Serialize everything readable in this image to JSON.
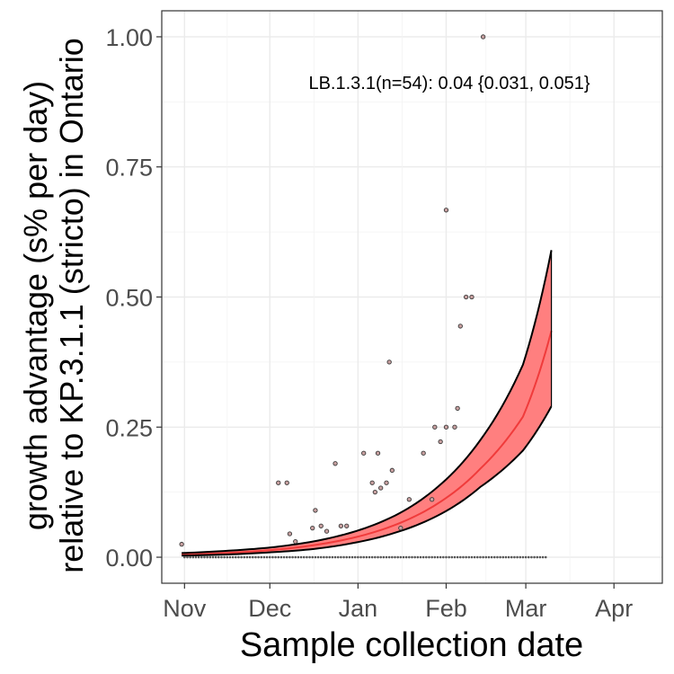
{
  "chart_data": {
    "type": "line",
    "title": "",
    "xlabel": "Sample collection date",
    "ylabel_line1": "growth advantage (s% per day)",
    "ylabel_line2": "relative to KP.3.1.1 (stricto) in Ontario",
    "annotation": "LB.1.3.1(n=54): 0.04 {0.031, 0.051}",
    "x_ticks": [
      {
        "label": "Nov",
        "date": "2024-11-01"
      },
      {
        "label": "Dec",
        "date": "2024-12-01"
      },
      {
        "label": "Jan",
        "date": "2025-01-01"
      },
      {
        "label": "Feb",
        "date": "2025-02-01"
      },
      {
        "label": "Mar",
        "date": "2025-03-01"
      },
      {
        "label": "Apr",
        "date": "2025-04-01"
      }
    ],
    "y_ticks": [
      "0.00",
      "0.25",
      "0.50",
      "0.75",
      "1.00"
    ],
    "xlim": [
      "2024-10-24",
      "2025-04-18"
    ],
    "ylim": [
      -0.05,
      1.05
    ],
    "grid": true,
    "colors": {
      "ribbon": "#ff7f7f",
      "fit_line": "#f03b3b",
      "bound_line": "#000000",
      "point_fill": "#c8a0a0"
    },
    "series": [
      {
        "name": "LB.1.3.1",
        "fit": {
          "x": [
            "2024-10-31",
            "2024-11-15",
            "2024-11-30",
            "2024-12-15",
            "2024-12-30",
            "2025-01-14",
            "2025-01-29",
            "2025-02-13",
            "2025-02-28",
            "2025-03-10"
          ],
          "mid": [
            0.005,
            0.008,
            0.013,
            0.022,
            0.037,
            0.062,
            0.103,
            0.17,
            0.27,
            0.435
          ],
          "lower": [
            0.003,
            0.005,
            0.009,
            0.015,
            0.027,
            0.047,
            0.08,
            0.135,
            0.205,
            0.29
          ],
          "upper": [
            0.008,
            0.012,
            0.018,
            0.029,
            0.048,
            0.08,
            0.135,
            0.225,
            0.37,
            0.59
          ]
        },
        "points": [
          {
            "x": "2024-10-31",
            "y": 0.025
          },
          {
            "x": "2024-12-04",
            "y": 0.143
          },
          {
            "x": "2024-12-07",
            "y": 0.143
          },
          {
            "x": "2024-12-08",
            "y": 0.045
          },
          {
            "x": "2024-12-10",
            "y": 0.03
          },
          {
            "x": "2024-12-16",
            "y": 0.056
          },
          {
            "x": "2024-12-17",
            "y": 0.09
          },
          {
            "x": "2024-12-19",
            "y": 0.06
          },
          {
            "x": "2024-12-21",
            "y": 0.05
          },
          {
            "x": "2024-12-24",
            "y": 0.18
          },
          {
            "x": "2024-12-26",
            "y": 0.06
          },
          {
            "x": "2024-12-28",
            "y": 0.06
          },
          {
            "x": "2025-01-03",
            "y": 0.2
          },
          {
            "x": "2025-01-06",
            "y": 0.143
          },
          {
            "x": "2025-01-07",
            "y": 0.125
          },
          {
            "x": "2025-01-08",
            "y": 0.2
          },
          {
            "x": "2025-01-09",
            "y": 0.133
          },
          {
            "x": "2025-01-11",
            "y": 0.143
          },
          {
            "x": "2025-01-12",
            "y": 0.375
          },
          {
            "x": "2025-01-13",
            "y": 0.167
          },
          {
            "x": "2025-01-16",
            "y": 0.056
          },
          {
            "x": "2025-01-19",
            "y": 0.111
          },
          {
            "x": "2025-01-24",
            "y": 0.2
          },
          {
            "x": "2025-01-27",
            "y": 0.111
          },
          {
            "x": "2025-01-28",
            "y": 0.25
          },
          {
            "x": "2025-01-30",
            "y": 0.222
          },
          {
            "x": "2025-02-01",
            "y": 0.25
          },
          {
            "x": "2025-02-01",
            "y": 0.667
          },
          {
            "x": "2025-02-04",
            "y": 0.25
          },
          {
            "x": "2025-02-05",
            "y": 0.286
          },
          {
            "x": "2025-02-06",
            "y": 0.444
          },
          {
            "x": "2025-02-08",
            "y": 0.5
          },
          {
            "x": "2025-02-10",
            "y": 0.5
          },
          {
            "x": "2025-02-14",
            "y": 1.0
          }
        ],
        "zero_days": {
          "start": "2024-11-01",
          "end": "2025-03-08"
        }
      }
    ]
  }
}
